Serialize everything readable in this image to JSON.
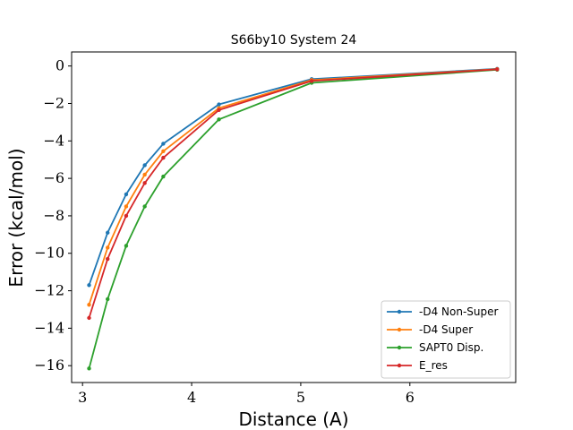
{
  "chart_data": {
    "type": "line",
    "title": "S66by10 System 24",
    "xlabel": "Distance (A)",
    "ylabel": "Error (kcal/mol)",
    "xlim": [
      2.9,
      6.97
    ],
    "ylim": [
      -16.9,
      0.75
    ],
    "x_ticks": [
      3,
      4,
      5,
      6
    ],
    "y_ticks": [
      0,
      -2,
      -4,
      -6,
      -8,
      -10,
      -12,
      -14,
      -16
    ],
    "x_tick_labels": [
      "3",
      "4",
      "5",
      "6"
    ],
    "y_tick_labels": [
      "0",
      "−2",
      "−4",
      "−6",
      "−8",
      "−10",
      "−12",
      "−14",
      "−16"
    ],
    "grid": false,
    "legend_position": "lower-right",
    "x": [
      3.06,
      3.23,
      3.4,
      3.57,
      3.74,
      4.25,
      5.1,
      6.8
    ],
    "series": [
      {
        "name": "-D4 Non-Super",
        "color": "#1f77b4",
        "values": [
          -11.7,
          -8.9,
          -6.85,
          -5.3,
          -4.15,
          -2.05,
          -0.7,
          -0.15
        ]
      },
      {
        "name": "-D4 Super",
        "color": "#ff7f0e",
        "values": [
          -12.75,
          -9.7,
          -7.5,
          -5.8,
          -4.55,
          -2.25,
          -0.75,
          -0.17
        ]
      },
      {
        "name": "SAPT0 Disp.",
        "color": "#2ca02c",
        "values": [
          -16.15,
          -12.45,
          -9.6,
          -7.5,
          -5.9,
          -2.85,
          -0.9,
          -0.2
        ]
      },
      {
        "name": "E_res",
        "color": "#d62728",
        "values": [
          -13.45,
          -10.3,
          -8.0,
          -6.25,
          -4.9,
          -2.35,
          -0.8,
          -0.18
        ]
      }
    ]
  }
}
